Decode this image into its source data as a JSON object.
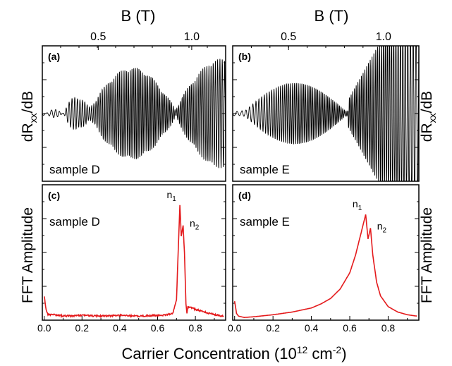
{
  "chart_data": [
    {
      "id": "a",
      "type": "line",
      "panel_label": "(a)",
      "annotation": "sample D",
      "ylabel": "dR",
      "ylabel_sub": "xx",
      "ylabel_tail": "/dB",
      "top_axis_label": "B (T)",
      "top_ticks": [
        "0.5",
        "1.0"
      ],
      "top_tick_values": [
        0.5,
        1.0
      ],
      "xlim": [
        0.0,
        0.96
      ],
      "ylim": [
        -1,
        1
      ],
      "y_tick_labels": "none",
      "series": [
        {
          "color": "#000000",
          "description": "Shubnikov-de Haas oscillations with beating pattern",
          "envelope_nodes_x": [
            0.02,
            0.11,
            0.25,
            0.72,
            0.8
          ],
          "envelope_max_amplitude": 0.62
        }
      ]
    },
    {
      "id": "b",
      "type": "line",
      "panel_label": "(b)",
      "annotation": "sample E",
      "ylabel": "dR",
      "ylabel_sub": "xx",
      "ylabel_tail": "/dB",
      "top_axis_label": "B (T)",
      "top_ticks": [
        "0.5",
        "1.0"
      ],
      "top_tick_values": [
        0.5,
        1.0
      ],
      "xlim": [
        0.0,
        0.96
      ],
      "ylim": [
        -1,
        1
      ],
      "y_tick_labels": "none",
      "series": [
        {
          "color": "#000000",
          "description": "Shubnikov-de Haas oscillations",
          "envelope_nodes_x": [
            0.05,
            0.62
          ]
        }
      ]
    },
    {
      "id": "c",
      "type": "line",
      "panel_label": "(c)",
      "annotation": "sample D",
      "ylabel": "FFT Amplitude",
      "xlabel": "Carrier Concentration (10",
      "xlabel_sup1": "12",
      "xlabel_mid": " cm",
      "xlabel_sup2": "-2",
      "xlabel_tail": ")",
      "x_ticks": [
        "0.0",
        "0.2",
        "0.4",
        "0.6",
        "0.8"
      ],
      "x_tick_values": [
        0.0,
        0.2,
        0.4,
        0.6,
        0.8
      ],
      "xlim": [
        -0.01,
        0.96
      ],
      "ylim": [
        0,
        1.0
      ],
      "y_tick_labels": "none",
      "peaks": [
        {
          "label": "n",
          "sub": "1",
          "x": 0.718,
          "y": 0.85
        },
        {
          "label": "n",
          "sub": "2",
          "x": 0.735,
          "y": 0.7
        }
      ],
      "series": [
        {
          "color": "#e41a1c",
          "x": [
            0.0,
            0.01,
            0.02,
            0.05,
            0.1,
            0.2,
            0.3,
            0.4,
            0.5,
            0.6,
            0.65,
            0.68,
            0.7,
            0.71,
            0.718,
            0.725,
            0.735,
            0.742,
            0.75,
            0.755,
            0.76,
            0.8,
            0.85,
            0.9,
            0.95
          ],
          "y": [
            0.18,
            0.08,
            0.04,
            0.04,
            0.03,
            0.035,
            0.03,
            0.035,
            0.03,
            0.035,
            0.04,
            0.05,
            0.15,
            0.55,
            0.85,
            0.62,
            0.7,
            0.5,
            0.12,
            0.05,
            0.1,
            0.08,
            0.06,
            0.04,
            0.03
          ]
        }
      ]
    },
    {
      "id": "d",
      "type": "line",
      "panel_label": "(d)",
      "annotation": "sample E",
      "ylabel": "FFT Amplitude",
      "x_ticks": [
        "0.0",
        "0.2",
        "0.4",
        "0.6",
        "0.8"
      ],
      "x_tick_values": [
        0.0,
        0.2,
        0.4,
        0.6,
        0.8
      ],
      "xlim": [
        -0.01,
        0.96
      ],
      "ylim": [
        0,
        1.0
      ],
      "y_tick_labels": "none",
      "peaks": [
        {
          "label": "n",
          "sub": "1",
          "x": 0.683,
          "y": 0.78
        },
        {
          "label": "n",
          "sub": "2",
          "x": 0.708,
          "y": 0.68
        }
      ],
      "series": [
        {
          "color": "#e41a1c",
          "x": [
            0.0,
            0.01,
            0.02,
            0.05,
            0.1,
            0.2,
            0.3,
            0.4,
            0.45,
            0.5,
            0.55,
            0.6,
            0.63,
            0.66,
            0.683,
            0.695,
            0.708,
            0.72,
            0.74,
            0.76,
            0.8,
            0.85,
            0.9,
            0.95
          ],
          "y": [
            0.14,
            0.05,
            0.03,
            0.02,
            0.025,
            0.04,
            0.06,
            0.09,
            0.12,
            0.16,
            0.23,
            0.35,
            0.48,
            0.65,
            0.78,
            0.6,
            0.68,
            0.48,
            0.28,
            0.18,
            0.1,
            0.06,
            0.04,
            0.03
          ]
        }
      ]
    }
  ]
}
